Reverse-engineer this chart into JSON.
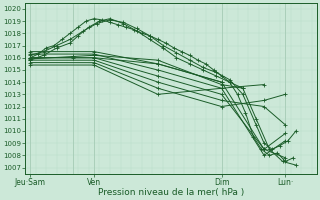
{
  "xlabel": "Pression niveau de la mer( hPa )",
  "ylim": [
    1006.5,
    1020.5
  ],
  "yticks": [
    1007,
    1008,
    1009,
    1010,
    1011,
    1012,
    1013,
    1014,
    1015,
    1016,
    1017,
    1018,
    1019,
    1020
  ],
  "xtick_labels": [
    "Jeu·Sam",
    "Ven",
    "Dim",
    "Lun·"
  ],
  "xtick_positions": [
    0,
    24,
    72,
    96
  ],
  "xlim": [
    -2,
    108
  ],
  "bg_color": "#cce8d8",
  "grid_color": "#aacfba",
  "line_color": "#1a5c28",
  "vlines_x": [
    0,
    16,
    24,
    72,
    96
  ],
  "ylabel_fontsize": 5.0,
  "xlabel_fontsize": 6.5,
  "xtick_fontsize": 5.5
}
